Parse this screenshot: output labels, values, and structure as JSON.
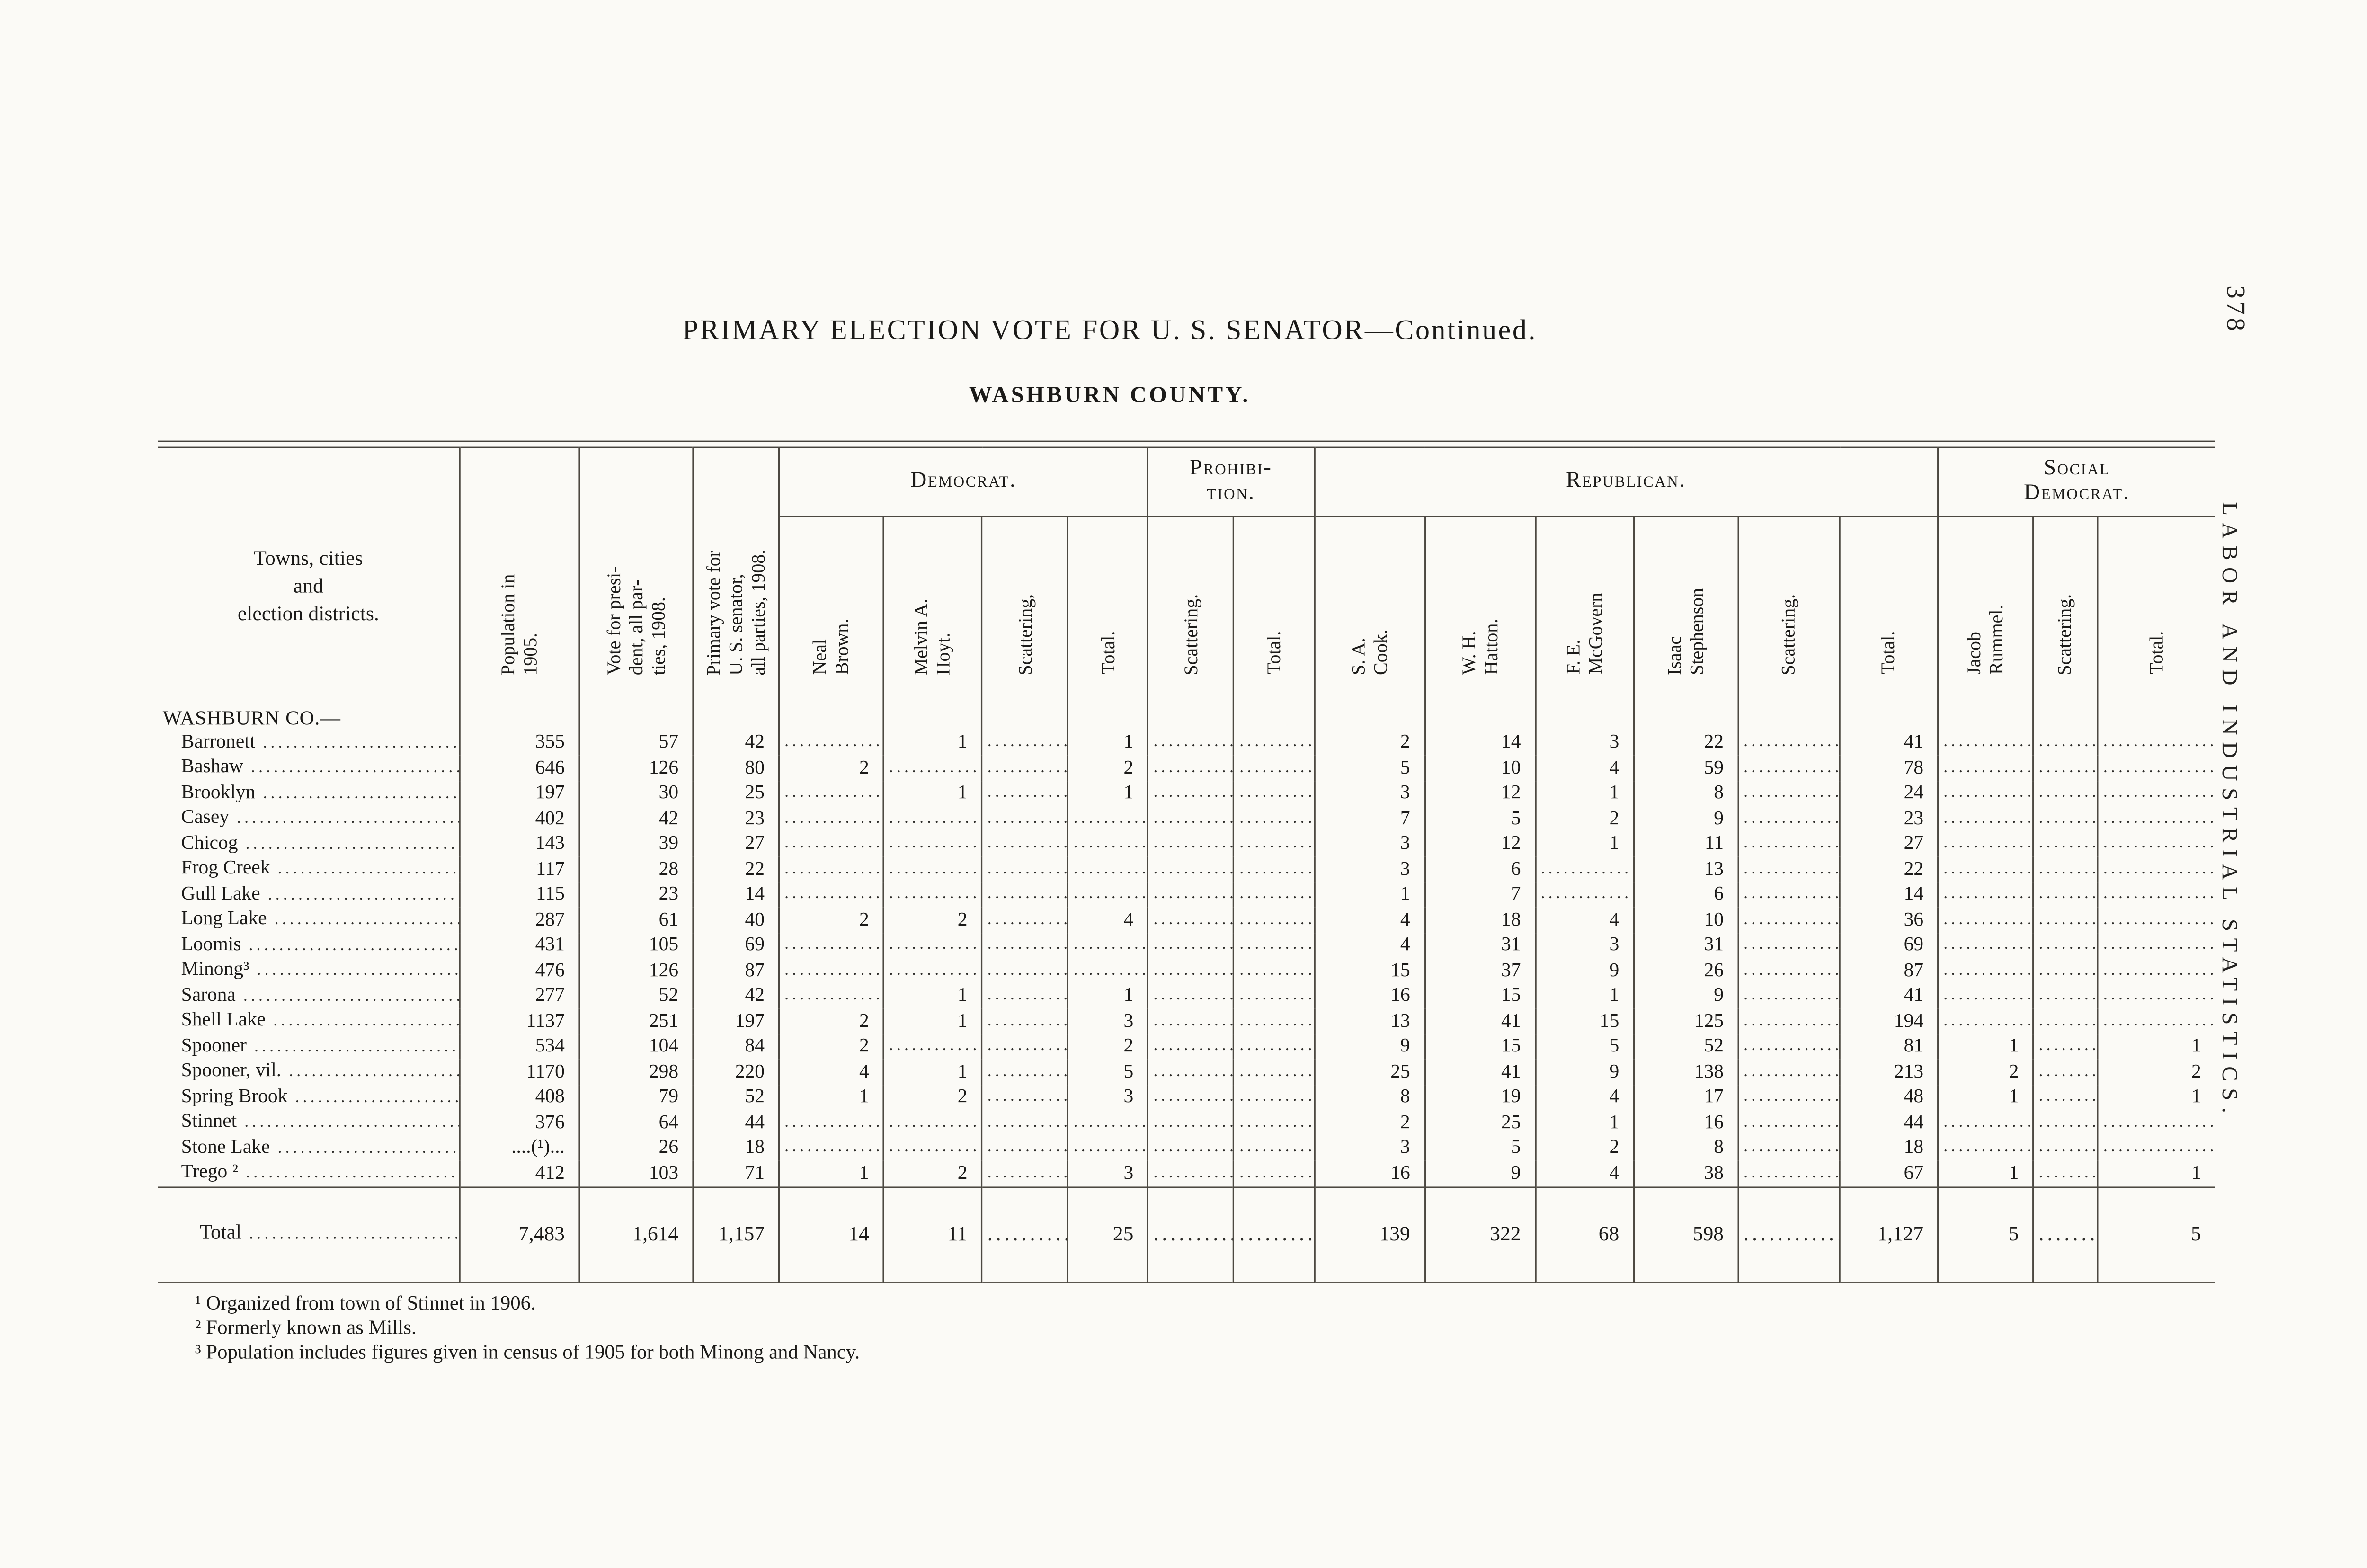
{
  "page": {
    "title": "PRIMARY ELECTION VOTE FOR U. S. SENATOR—Continued.",
    "subtitle": "WASHBURN COUNTY.",
    "page_number": "378",
    "margin_text": "LABOR AND INDUSTRIAL STATISTICS."
  },
  "table": {
    "county_label": "WASHBURN CO.—",
    "row_axis_header": "Towns, cities\nand\nelection districts.",
    "left_headers": [
      "Population in\n1905.",
      "Vote for presi-\ndent, all par-\nties, 1908.",
      "Primary vote for\nU. S. senator,\nall parties, 1908."
    ],
    "groups": [
      {
        "label": "Democrat.",
        "columns": [
          "Neal\nBrown.",
          "Melvin A.\nHoyt.",
          "Scattering,",
          "Total."
        ]
      },
      {
        "label": "Prohibi-\ntion.",
        "columns": [
          "Scattering.",
          "Total."
        ]
      },
      {
        "label": "Republican.",
        "columns": [
          "S. A.\nCook.",
          "W. H.\nHatton.",
          "F. E.\nMcGovern",
          "Isaac\nStephenson",
          "Scattering.",
          "Total."
        ]
      },
      {
        "label": "Social\nDemocrat.",
        "columns": [
          "Jacob\nRummel.",
          "Scattering.",
          "Total."
        ]
      }
    ],
    "rows": [
      {
        "name": "Barronett",
        "values": [
          "355",
          "57",
          "42",
          "",
          "1",
          "",
          "1",
          "",
          "",
          "2",
          "14",
          "3",
          "22",
          "",
          "41",
          "",
          "",
          ""
        ]
      },
      {
        "name": "Bashaw",
        "values": [
          "646",
          "126",
          "80",
          "2",
          "",
          "",
          "2",
          "",
          "",
          "5",
          "10",
          "4",
          "59",
          "",
          "78",
          "",
          "",
          ""
        ]
      },
      {
        "name": "Brooklyn",
        "values": [
          "197",
          "30",
          "25",
          "",
          "1",
          "",
          "1",
          "",
          "",
          "3",
          "12",
          "1",
          "8",
          "",
          "24",
          "",
          "",
          ""
        ]
      },
      {
        "name": "Casey",
        "values": [
          "402",
          "42",
          "23",
          "",
          "",
          "",
          "",
          "",
          "",
          "7",
          "5",
          "2",
          "9",
          "",
          "23",
          "",
          "",
          ""
        ]
      },
      {
        "name": "Chicog",
        "values": [
          "143",
          "39",
          "27",
          "",
          "",
          "",
          "",
          "",
          "",
          "3",
          "12",
          "1",
          "11",
          "",
          "27",
          "",
          "",
          ""
        ]
      },
      {
        "name": "Frog Creek",
        "values": [
          "117",
          "28",
          "22",
          "",
          "",
          "",
          "",
          "",
          "",
          "3",
          "6",
          "",
          "13",
          "",
          "22",
          "",
          "",
          ""
        ]
      },
      {
        "name": "Gull Lake",
        "values": [
          "115",
          "23",
          "14",
          "",
          "",
          "",
          "",
          "",
          "",
          "1",
          "7",
          "",
          "6",
          "",
          "14",
          "",
          "",
          ""
        ]
      },
      {
        "name": "Long Lake",
        "values": [
          "287",
          "61",
          "40",
          "2",
          "2",
          "",
          "4",
          "",
          "",
          "4",
          "18",
          "4",
          "10",
          "",
          "36",
          "",
          "",
          ""
        ]
      },
      {
        "name": "Loomis",
        "values": [
          "431",
          "105",
          "69",
          "",
          "",
          "",
          "",
          "",
          "",
          "4",
          "31",
          "3",
          "31",
          "",
          "69",
          "",
          "",
          ""
        ]
      },
      {
        "name": "Minong³",
        "values": [
          "476",
          "126",
          "87",
          "",
          "",
          "",
          "",
          "",
          "",
          "15",
          "37",
          "9",
          "26",
          "",
          "87",
          "",
          "",
          ""
        ]
      },
      {
        "name": "Sarona",
        "values": [
          "277",
          "52",
          "42",
          "",
          "1",
          "",
          "1",
          "",
          "",
          "16",
          "15",
          "1",
          "9",
          "",
          "41",
          "",
          "",
          ""
        ]
      },
      {
        "name": "Shell Lake",
        "values": [
          "1137",
          "251",
          "197",
          "2",
          "1",
          "",
          "3",
          "",
          "",
          "13",
          "41",
          "15",
          "125",
          "",
          "194",
          "",
          "",
          ""
        ]
      },
      {
        "name": "Spooner",
        "values": [
          "534",
          "104",
          "84",
          "2",
          "",
          "",
          "2",
          "",
          "",
          "9",
          "15",
          "5",
          "52",
          "",
          "81",
          "1",
          "",
          "1"
        ]
      },
      {
        "name": "Spooner, vil.",
        "values": [
          "1170",
          "298",
          "220",
          "4",
          "1",
          "",
          "5",
          "",
          "",
          "25",
          "41",
          "9",
          "138",
          "",
          "213",
          "2",
          "",
          "2"
        ]
      },
      {
        "name": "Spring Brook",
        "values": [
          "408",
          "79",
          "52",
          "1",
          "2",
          "",
          "3",
          "",
          "",
          "8",
          "19",
          "4",
          "17",
          "",
          "48",
          "1",
          "",
          "1"
        ]
      },
      {
        "name": "Stinnet",
        "values": [
          "376",
          "64",
          "44",
          "",
          "",
          "",
          "",
          "",
          "",
          "2",
          "25",
          "1",
          "16",
          "",
          "44",
          "",
          "",
          ""
        ]
      },
      {
        "name": "Stone Lake",
        "values": [
          "....(¹)...",
          "26",
          "18",
          "",
          "",
          "",
          "",
          "",
          "",
          "3",
          "5",
          "2",
          "8",
          "",
          "18",
          "",
          "",
          ""
        ]
      },
      {
        "name": "Trego ²",
        "values": [
          "412",
          "103",
          "71",
          "1",
          "2",
          "",
          "3",
          "",
          "",
          "16",
          "9",
          "4",
          "38",
          "",
          "67",
          "1",
          "",
          "1"
        ]
      }
    ],
    "total": {
      "name": "Total",
      "values": [
        "7,483",
        "1,614",
        "1,157",
        "14",
        "11",
        "",
        "25",
        "",
        "",
        "139",
        "322",
        "68",
        "598",
        "",
        "1,127",
        "5",
        "",
        "5"
      ]
    }
  },
  "footnotes": [
    "¹ Organized from town of Stinnet in 1906.",
    "² Formerly known as Mills.",
    "³ Population includes figures given in census of 1905 for both Minong and Nancy."
  ]
}
